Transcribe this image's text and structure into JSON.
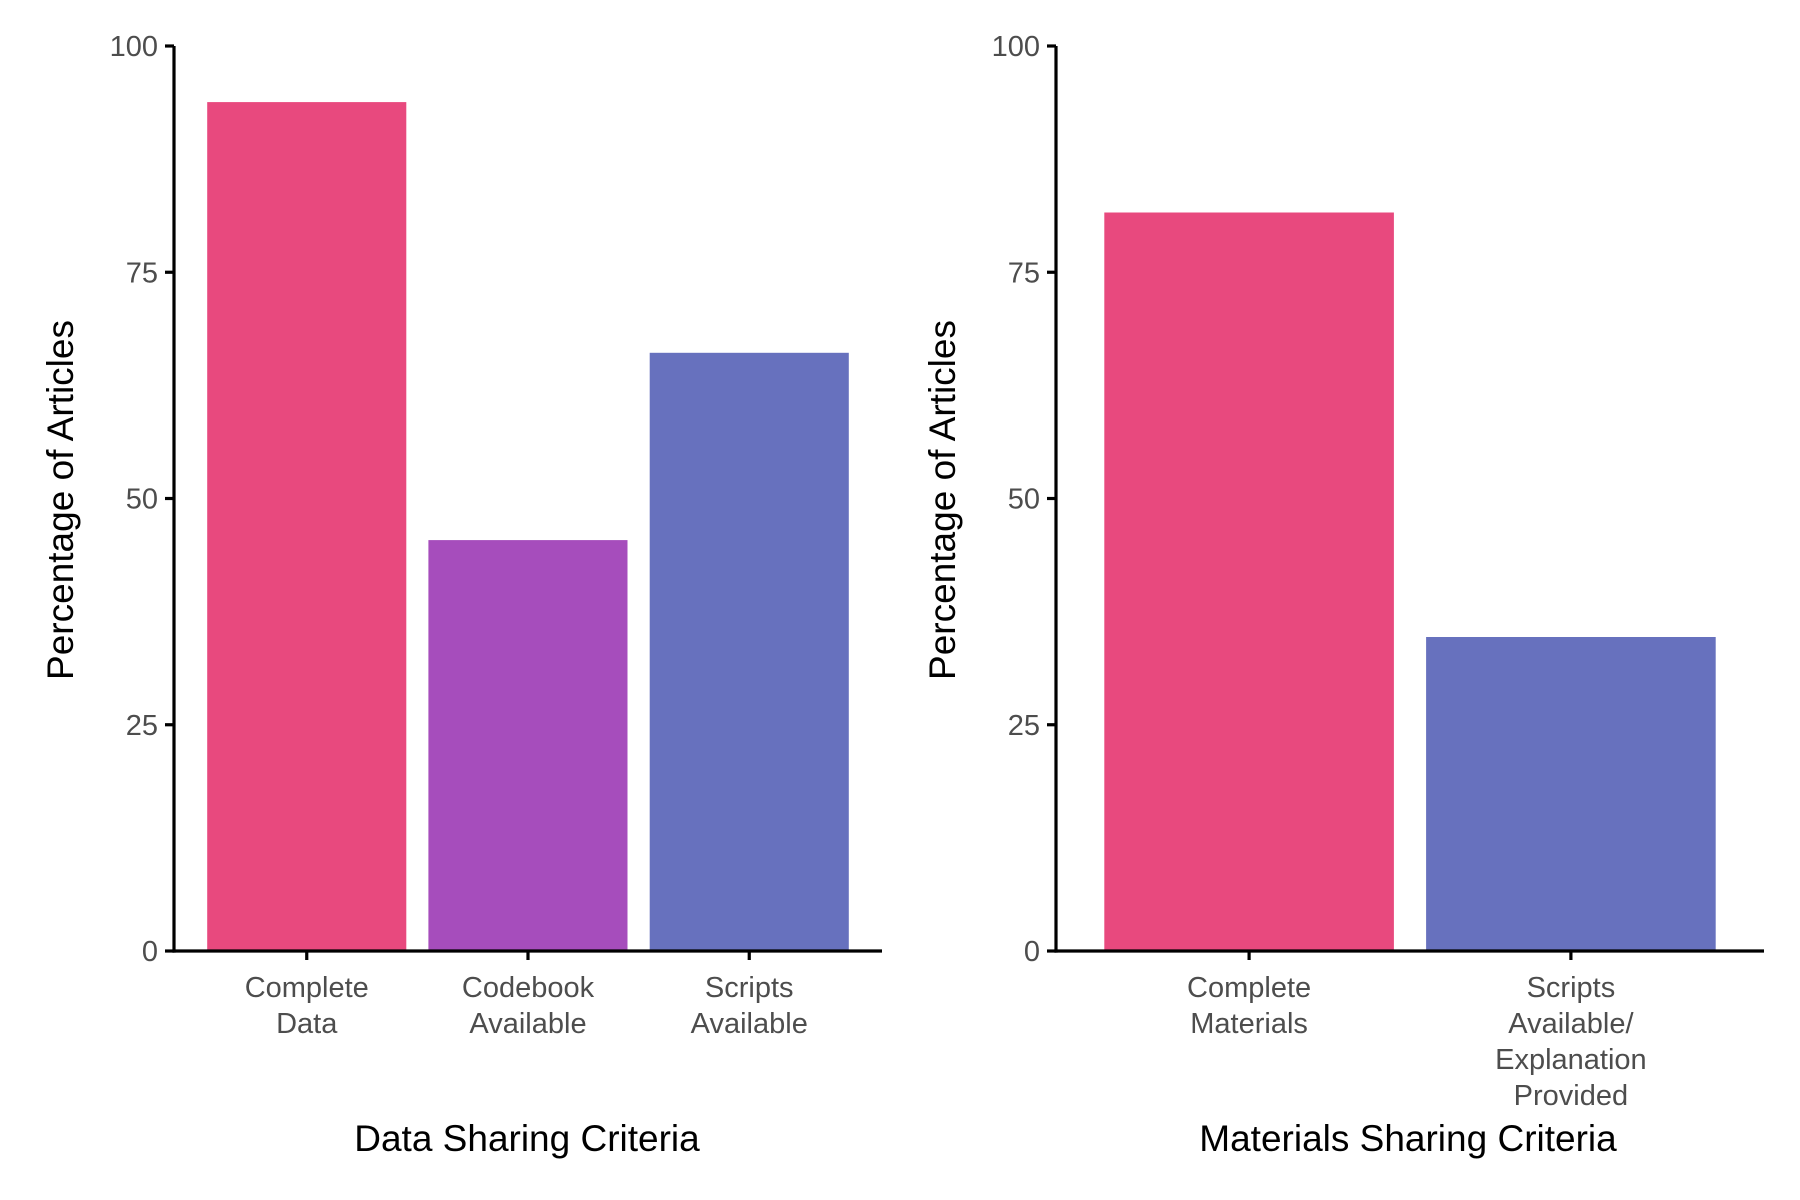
{
  "chart_data": [
    {
      "type": "bar",
      "categories": [
        [
          "Complete",
          "Data"
        ],
        [
          "Codebook",
          "Available"
        ],
        [
          "Scripts",
          "Available"
        ]
      ],
      "values": [
        93.8,
        45.4,
        66.1
      ],
      "colors": [
        "#E8497E",
        "#A64DBC",
        "#6771BE"
      ],
      "xlabel": "Data Sharing Criteria",
      "ylabel": "Percentage of Articles",
      "ylim": [
        0,
        100
      ],
      "yticks": [
        0,
        25,
        50,
        75,
        100
      ],
      "grid": false
    },
    {
      "type": "bar",
      "categories": [
        [
          "Complete",
          "Materials"
        ],
        [
          "Scripts",
          "Available/",
          "Explanation",
          "Provided"
        ]
      ],
      "values": [
        81.6,
        34.7
      ],
      "colors": [
        "#E8497E",
        "#6771BE"
      ],
      "xlabel": "Materials Sharing Criteria",
      "ylabel": "Percentage of Articles",
      "ylim": [
        0,
        100
      ],
      "yticks": [
        0,
        25,
        50,
        75,
        100
      ],
      "grid": false
    }
  ]
}
